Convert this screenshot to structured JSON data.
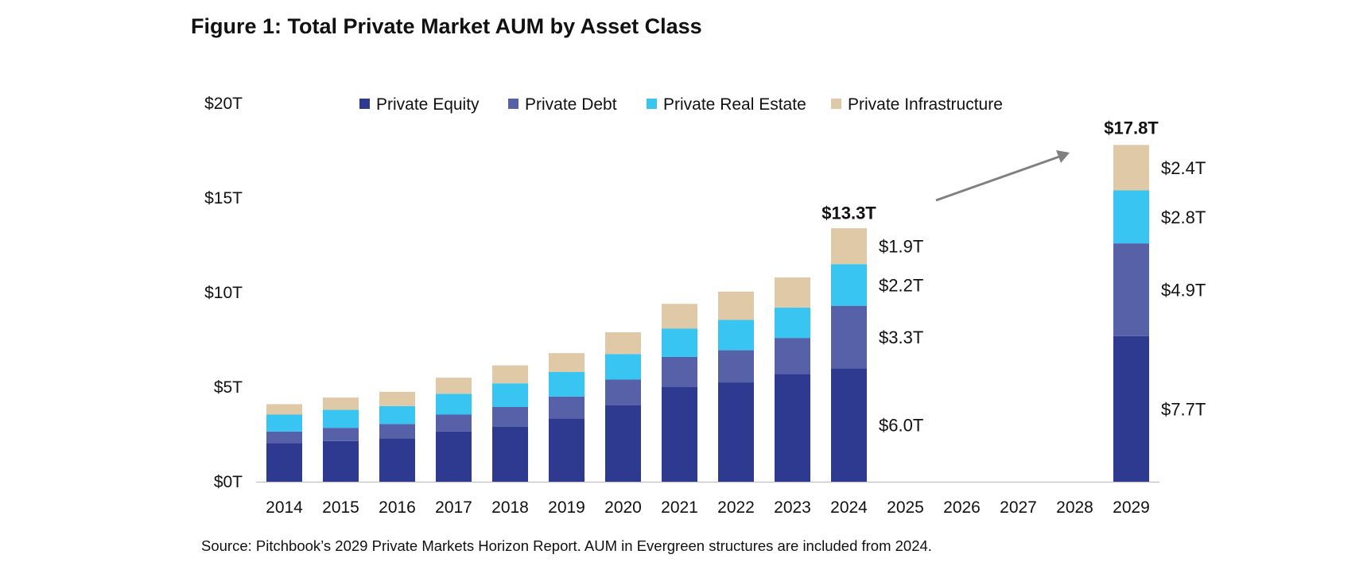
{
  "chart_data": {
    "type": "bar",
    "stacked": true,
    "title": "Figure 1: Total Private Market AUM by Asset Class",
    "xlabel": "",
    "ylabel": "",
    "ylim": [
      0,
      20
    ],
    "y_ticks": [
      {
        "value": 0,
        "label": "$0T"
      },
      {
        "value": 5,
        "label": "$5T"
      },
      {
        "value": 10,
        "label": "$10T"
      },
      {
        "value": 15,
        "label": "$15T"
      },
      {
        "value": 20,
        "label": "$20T"
      }
    ],
    "legend_position": "top",
    "categories": [
      "2014",
      "2015",
      "2016",
      "2017",
      "2018",
      "2019",
      "2020",
      "2021",
      "2022",
      "2023",
      "2024",
      "2025",
      "2026",
      "2027",
      "2028",
      "2029"
    ],
    "series": [
      {
        "name": "Private Equity",
        "color": "#2e3a8f",
        "values": [
          2.05,
          2.15,
          2.3,
          2.65,
          2.9,
          3.35,
          4.05,
          5.0,
          5.25,
          5.7,
          6.0,
          null,
          null,
          null,
          null,
          7.7
        ]
      },
      {
        "name": "Private Debt",
        "color": "#5761a8",
        "values": [
          0.6,
          0.7,
          0.75,
          0.9,
          1.05,
          1.15,
          1.35,
          1.6,
          1.7,
          1.9,
          3.3,
          null,
          null,
          null,
          null,
          4.9
        ]
      },
      {
        "name": "Private Real Estate",
        "color": "#38c5f2",
        "values": [
          0.9,
          0.95,
          0.95,
          1.1,
          1.25,
          1.3,
          1.35,
          1.5,
          1.6,
          1.6,
          2.2,
          null,
          null,
          null,
          null,
          2.8
        ]
      },
      {
        "name": "Private Infrastructure",
        "color": "#dfc9a6",
        "values": [
          0.55,
          0.65,
          0.75,
          0.85,
          0.95,
          1.0,
          1.15,
          1.3,
          1.5,
          1.6,
          1.9,
          null,
          null,
          null,
          null,
          2.4
        ]
      }
    ],
    "segment_labels": [
      {
        "category": "2024",
        "series": "Private Equity",
        "text": "$6.0T"
      },
      {
        "category": "2024",
        "series": "Private Debt",
        "text": "$3.3T"
      },
      {
        "category": "2024",
        "series": "Private Real Estate",
        "text": "$2.2T"
      },
      {
        "category": "2024",
        "series": "Private Infrastructure",
        "text": "$1.9T"
      },
      {
        "category": "2029",
        "series": "Private Equity",
        "text": "$7.7T"
      },
      {
        "category": "2029",
        "series": "Private Debt",
        "text": "$4.9T"
      },
      {
        "category": "2029",
        "series": "Private Real Estate",
        "text": "$2.8T"
      },
      {
        "category": "2029",
        "series": "Private Infrastructure",
        "text": "$2.4T"
      }
    ],
    "totals": [
      {
        "category": "2024",
        "value": 13.3,
        "text": "$13.3T"
      },
      {
        "category": "2029",
        "value": 17.8,
        "text": "$17.8T"
      }
    ],
    "annotations": [
      {
        "type": "arrow",
        "from_category": "2025",
        "to_category": "2028",
        "direction": "up-right",
        "color": "#808080"
      }
    ],
    "source": "Source: Pitchbook’s 2029 Private Markets Horizon Report. AUM in Evergreen structures are included from 2024."
  }
}
